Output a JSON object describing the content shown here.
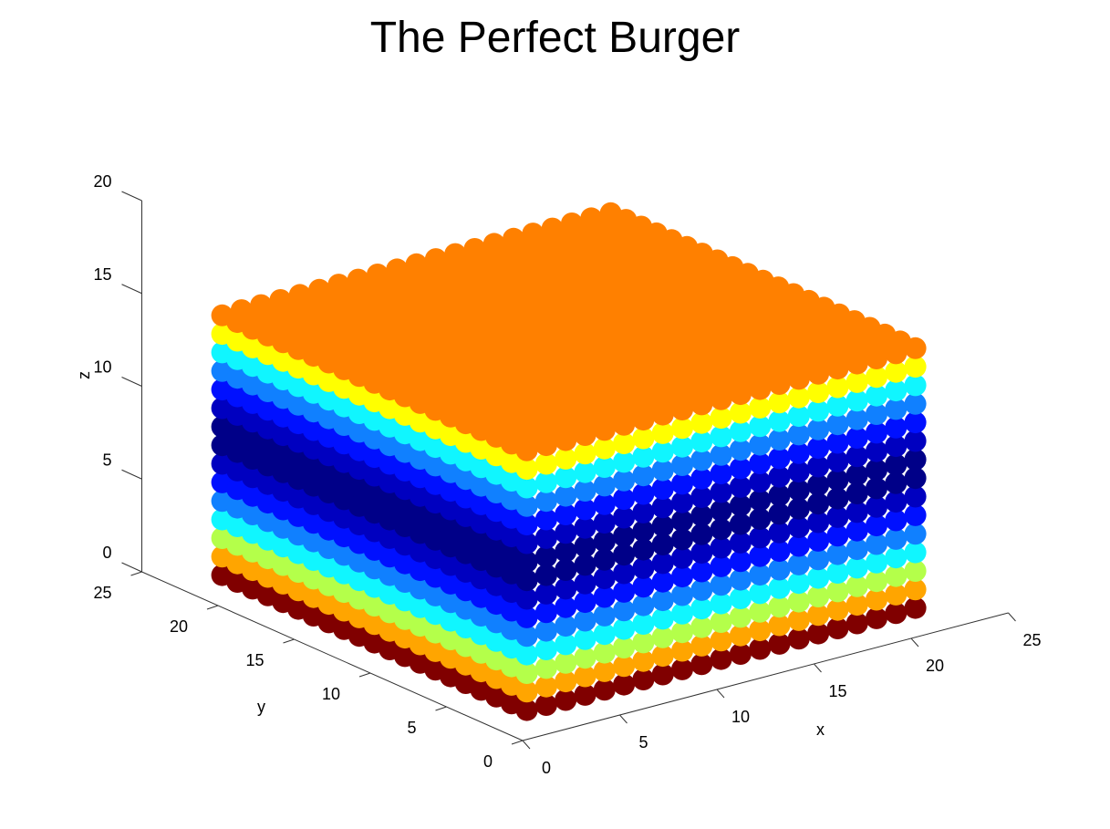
{
  "chart_data": {
    "type": "scatter3",
    "title": "The Perfect Burger",
    "xlabel": "x",
    "ylabel": "y",
    "zlabel": "z",
    "xlim": [
      0,
      25
    ],
    "ylim": [
      0,
      25
    ],
    "zlim": [
      0,
      20
    ],
    "xticks": [
      "0",
      "5",
      "10",
      "15",
      "20",
      "25"
    ],
    "yticks": [
      "0",
      "5",
      "10",
      "15",
      "20",
      "25"
    ],
    "zticks": [
      "0",
      "5",
      "10",
      "15",
      "20"
    ],
    "grid": false,
    "points": {
      "x_range": [
        1,
        21
      ],
      "y_range": [
        1,
        21
      ],
      "step": 1,
      "marker": "filled-circle",
      "colormap": "jet"
    },
    "layers": [
      {
        "z": 1,
        "color": "#800000"
      },
      {
        "z": 2,
        "color": "#ffa500"
      },
      {
        "z": 3,
        "color": "#b4ff4a"
      },
      {
        "z": 4,
        "color": "#10f6ff"
      },
      {
        "z": 5,
        "color": "#1080ff"
      },
      {
        "z": 6,
        "color": "#0010ff"
      },
      {
        "z": 7,
        "color": "#0000c0"
      },
      {
        "z": 8,
        "color": "#000088"
      },
      {
        "z": 9,
        "color": "#000088"
      },
      {
        "z": 10,
        "color": "#0000c0"
      },
      {
        "z": 11,
        "color": "#0010ff"
      },
      {
        "z": 12,
        "color": "#1080ff"
      },
      {
        "z": 13,
        "color": "#10f6ff"
      },
      {
        "z": 14,
        "color": "#ffff00"
      },
      {
        "z": 15,
        "color": "#ff8000"
      }
    ]
  }
}
